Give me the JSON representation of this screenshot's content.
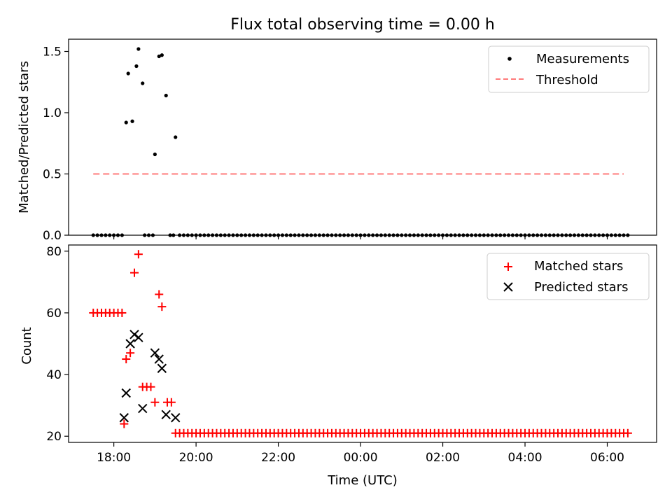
{
  "chart_data": [
    {
      "type": "scatter",
      "title": "Flux total observing time = 0.00 h",
      "ylabel": "Matched/Predicted stars",
      "xlabel": "",
      "ylim": [
        0,
        1.6
      ],
      "yticks": [
        0.0,
        0.5,
        1.0,
        1.5
      ],
      "ytick_labels": [
        "0.0",
        "0.5",
        "1.0",
        "1.5"
      ],
      "x_unit": "hours since 00:00 UTC of first night",
      "xlim": [
        16.9,
        31.2
      ],
      "legend_position": "upper right",
      "legend": [
        "Measurements",
        "Threshold"
      ],
      "series": [
        {
          "name": "Measurements",
          "color": "#000000",
          "marker": "dot",
          "x": [
            17.5,
            17.6,
            17.7,
            17.8,
            17.9,
            18.0,
            18.1,
            18.2,
            18.3,
            18.35,
            18.45,
            18.55,
            18.6,
            18.7,
            18.75,
            18.85,
            18.95,
            19.0,
            19.1,
            19.17,
            19.27,
            19.37,
            19.45,
            19.5,
            19.6,
            19.7,
            19.8,
            19.9
          ],
          "y": [
            0,
            0,
            0,
            0,
            0,
            0,
            0,
            0,
            0.92,
            1.32,
            0.93,
            1.38,
            1.52,
            1.24,
            0,
            0,
            0,
            0.66,
            1.46,
            1.47,
            1.14,
            0,
            0,
            0.8,
            0,
            0,
            0,
            0
          ],
          "trailing_zero_range": [
            19.6,
            30.55
          ]
        },
        {
          "name": "Threshold",
          "color": "#ff7b7b",
          "style": "dashed",
          "x": [
            17.5,
            30.4
          ],
          "y": [
            0.5,
            0.5
          ]
        }
      ]
    },
    {
      "type": "scatter",
      "title": "",
      "ylabel": "Count",
      "xlabel": "Time (UTC)",
      "ylim": [
        18,
        82
      ],
      "yticks": [
        20,
        40,
        60,
        80
      ],
      "ytick_labels": [
        "20",
        "40",
        "60",
        "80"
      ],
      "xlim": [
        16.9,
        31.2
      ],
      "xticks": [
        18,
        20,
        22,
        24,
        26,
        28,
        30
      ],
      "xtick_labels": [
        "18:00",
        "20:00",
        "22:00",
        "00:00",
        "02:00",
        "04:00",
        "06:00"
      ],
      "legend_position": "upper right",
      "legend": [
        "Matched stars",
        "Predicted stars"
      ],
      "series": [
        {
          "name": "Matched stars",
          "color": "#ff0000",
          "marker": "plus",
          "x": [
            17.5,
            17.6,
            17.7,
            17.8,
            17.9,
            18.0,
            18.1,
            18.2,
            18.25,
            18.3,
            18.4,
            18.5,
            18.6,
            18.7,
            18.8,
            18.9,
            19.0,
            19.1,
            19.17,
            19.3,
            19.4,
            19.5,
            19.6,
            19.7,
            19.8,
            19.9
          ],
          "y": [
            60,
            60,
            60,
            60,
            60,
            60,
            60,
            60,
            24,
            45,
            47,
            73,
            79,
            36,
            36,
            36,
            31,
            66,
            62,
            31,
            31,
            21,
            21,
            21,
            21,
            21
          ],
          "trailing_value": 21,
          "trailing_range": [
            19.6,
            30.55
          ]
        },
        {
          "name": "Predicted stars",
          "color": "#000000",
          "marker": "x",
          "x": [
            18.25,
            18.3,
            18.4,
            18.5,
            18.6,
            18.7,
            19.0,
            19.1,
            19.17,
            19.27,
            19.5
          ],
          "y": [
            26,
            34,
            50,
            53,
            52,
            29,
            47,
            45,
            42,
            27,
            26
          ]
        }
      ]
    }
  ]
}
